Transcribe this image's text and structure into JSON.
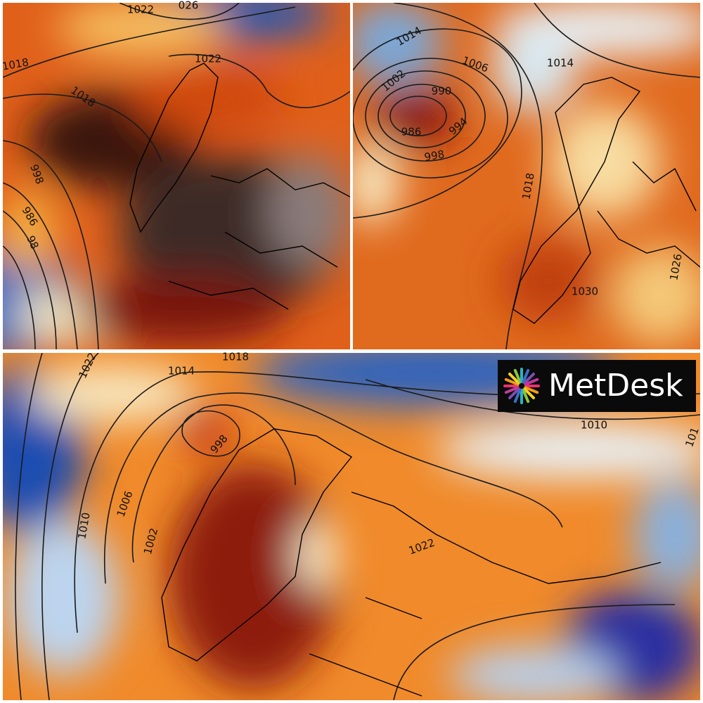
{
  "panels": [
    {
      "isobar_labels": [
        "1022",
        "026",
        "1018",
        "1022",
        "1018",
        "998",
        "986",
        "98"
      ]
    },
    {
      "isobar_labels": [
        "1014",
        "1006",
        "1014",
        "1002",
        "990",
        "986",
        "994",
        "998",
        "1018",
        "1030",
        "1026"
      ]
    },
    {
      "isobar_labels": [
        "1022",
        "1014",
        "1018",
        "998",
        "1006",
        "1002",
        "1010",
        "1010",
        "1022",
        "101"
      ]
    }
  ],
  "logo": {
    "text": "MetDesk"
  }
}
